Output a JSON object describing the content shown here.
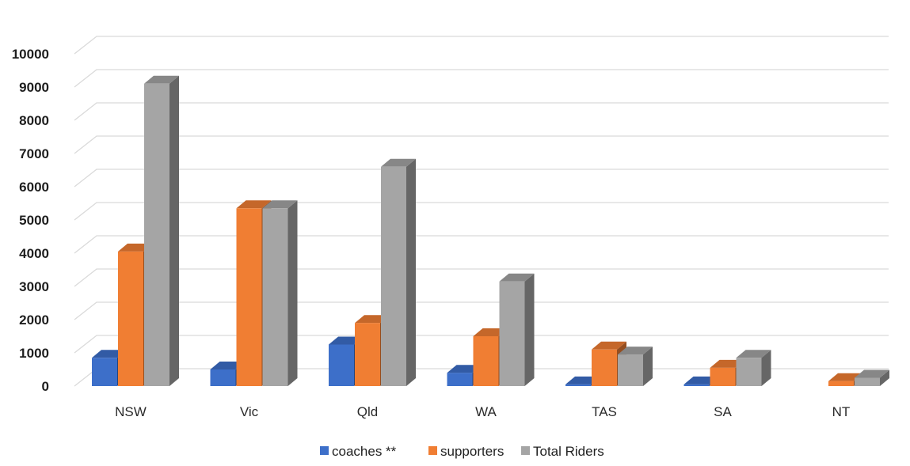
{
  "chart_data": {
    "type": "bar",
    "categories": [
      "NSW",
      "Vic",
      "Qld",
      "WA",
      "TAS",
      "SA",
      "NT"
    ],
    "series": [
      {
        "name": "coaches **",
        "values": [
          850,
          500,
          1250,
          400,
          50,
          50,
          0
        ],
        "color": "#3d6fc9"
      },
      {
        "name": "supporters",
        "values": [
          4050,
          5350,
          1900,
          1500,
          1100,
          550,
          150
        ],
        "color": "#f07e33"
      },
      {
        "name": "Total Riders",
        "values": [
          9100,
          5350,
          6600,
          3150,
          950,
          850,
          250
        ],
        "color": "#a5a5a5"
      }
    ],
    "yticks": [
      0,
      1000,
      2000,
      3000,
      4000,
      5000,
      6000,
      7000,
      8000,
      9000,
      10000
    ],
    "ylim": [
      0,
      10000
    ],
    "grid": true,
    "legend_position": "bottom",
    "title": "",
    "xlabel": "",
    "ylabel": ""
  }
}
